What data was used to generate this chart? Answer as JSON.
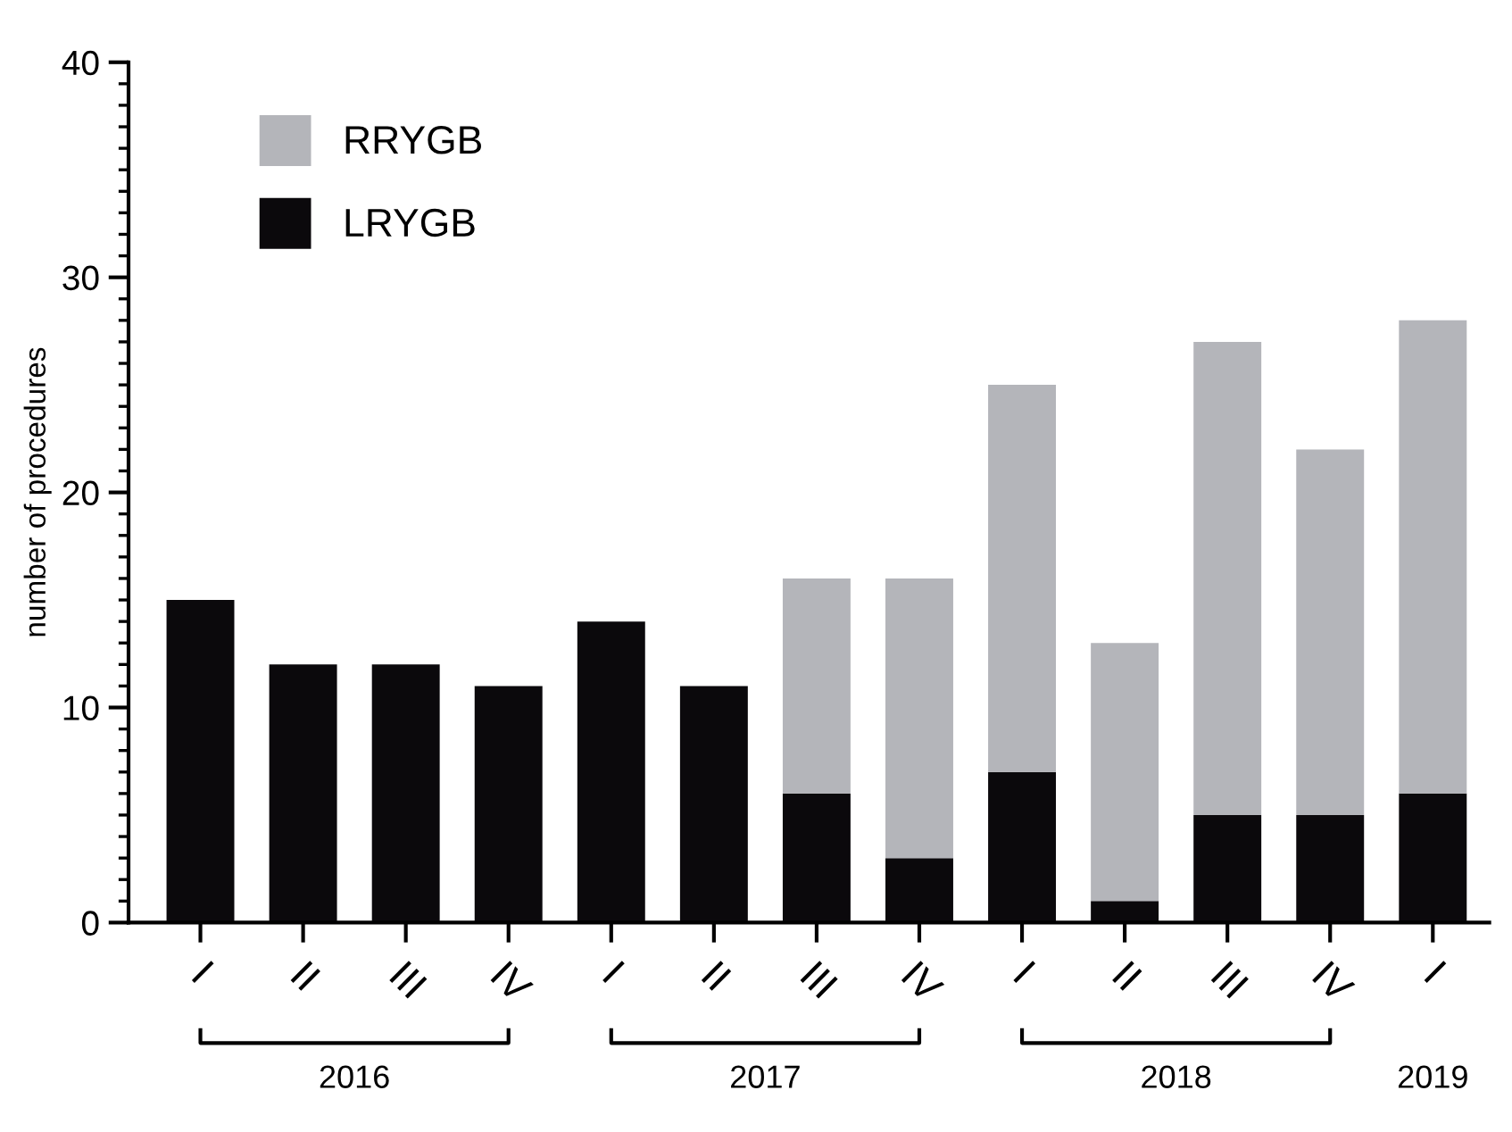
{
  "chart_data": {
    "type": "bar",
    "stacked": true,
    "ylabel": "number of procedures",
    "categories": [
      "I",
      "II",
      "III",
      "IV",
      "I",
      "II",
      "III",
      "IV",
      "I",
      "II",
      "III",
      "IV",
      "I"
    ],
    "series": [
      {
        "name": "LRYGB",
        "color": "#0b090c",
        "values": [
          15,
          12,
          12,
          11,
          14,
          11,
          6,
          3,
          7,
          1,
          5,
          5,
          6
        ]
      },
      {
        "name": "RRYGB",
        "color": "#b4b5ba",
        "values": [
          0,
          0,
          0,
          0,
          0,
          0,
          10,
          13,
          18,
          12,
          22,
          17,
          22
        ]
      }
    ],
    "ylim": [
      0,
      40
    ],
    "yticks": [
      0,
      10,
      20,
      30,
      40
    ],
    "legend": "top left",
    "grid": false,
    "annotations": [
      "2016",
      "2017",
      "2018",
      "2019"
    ]
  }
}
